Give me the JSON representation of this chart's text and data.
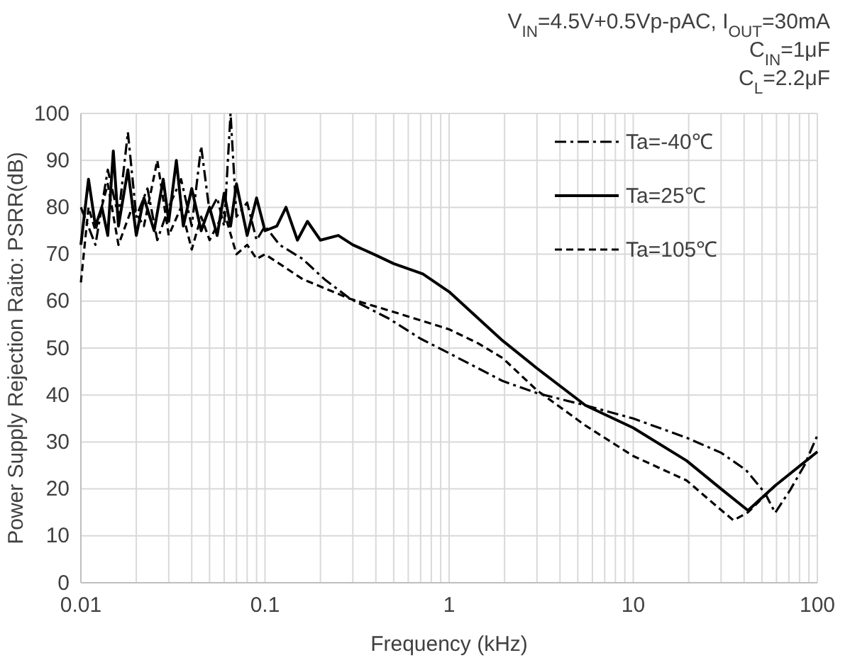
{
  "chart_data": {
    "type": "line",
    "title": "V$_{IN}$=4.5V+0.5Vp-pAC, I$_{OUT}$=30mA",
    "annotations": [
      "C$_{IN}$=1μF",
      "C$_{L}$=2.2μF"
    ],
    "xlabel": "Frequency (kHz)",
    "ylabel": "Power Supply Rejection Raito: PSRR(dB)",
    "log": "x",
    "grid": true,
    "legend": "top right",
    "marker": "none",
    "xlim": [
      0.01,
      100
    ],
    "xticks": [
      0.01,
      0.1,
      1,
      10,
      100
    ],
    "ylim": [
      0,
      100
    ],
    "yticks": [
      0,
      10,
      20,
      30,
      40,
      50,
      60,
      70,
      80,
      90,
      100
    ],
    "series": [
      {
        "name": "Ta=-40℃",
        "color": "#000000",
        "line_style": "dashdot",
        "x": [
          0.01,
          0.012,
          0.014,
          0.016,
          0.018,
          0.02,
          0.023,
          0.026,
          0.03,
          0.035,
          0.04,
          0.045,
          0.05,
          0.055,
          0.06,
          0.065,
          0.07,
          0.08,
          0.09,
          0.1,
          0.12,
          0.16,
          0.21,
          0.29,
          0.47,
          0.7,
          1,
          1.95,
          3,
          5.5,
          10,
          19.5,
          30,
          41,
          52,
          59,
          71,
          85,
          100
        ],
        "values": [
          80,
          72,
          88,
          78,
          96,
          78,
          84,
          73,
          80,
          86,
          76,
          93,
          79,
          82,
          76,
          100,
          78,
          81,
          73,
          76,
          72,
          69,
          64.7,
          60.5,
          56.3,
          52,
          48.9,
          43,
          40.4,
          37.8,
          35,
          30.9,
          27.7,
          24,
          19.1,
          14.9,
          19.7,
          25,
          31.4
        ]
      },
      {
        "name": "Ta=25℃",
        "color": "#000000",
        "line_style": "solid",
        "x": [
          0.01,
          0.011,
          0.012,
          0.013,
          0.014,
          0.015,
          0.016,
          0.018,
          0.02,
          0.022,
          0.025,
          0.028,
          0.03,
          0.033,
          0.036,
          0.04,
          0.045,
          0.05,
          0.055,
          0.06,
          0.065,
          0.07,
          0.08,
          0.09,
          0.1,
          0.116,
          0.13,
          0.15,
          0.17,
          0.2,
          0.25,
          0.3,
          0.39,
          0.5,
          0.72,
          1,
          1.95,
          3,
          5.5,
          10,
          19.5,
          30,
          42,
          59,
          100
        ],
        "values": [
          72,
          86,
          76,
          80,
          74,
          92,
          76,
          88,
          74,
          82,
          75,
          86,
          77,
          90,
          76,
          84,
          75,
          80,
          74,
          83,
          76,
          85,
          74,
          82,
          75,
          76,
          80,
          73,
          77,
          73,
          74,
          72,
          70,
          68,
          65.8,
          62,
          51.6,
          45.7,
          37.8,
          33,
          26,
          20,
          15.4,
          20.7,
          27.9
        ]
      },
      {
        "name": "Ta=105℃",
        "color": "#000000",
        "line_style": "dashed",
        "x": [
          0.01,
          0.011,
          0.012,
          0.014,
          0.016,
          0.019,
          0.022,
          0.026,
          0.03,
          0.035,
          0.04,
          0.045,
          0.05,
          0.06,
          0.07,
          0.08,
          0.09,
          0.1,
          0.16,
          0.29,
          0.53,
          1,
          1.44,
          1.95,
          3,
          5.5,
          10,
          19.5,
          28,
          35,
          42,
          59,
          100
        ],
        "values": [
          64,
          80,
          75,
          85,
          72,
          80,
          76,
          90,
          74,
          80,
          71,
          78,
          73,
          79,
          70,
          72,
          69,
          70,
          64.7,
          60.5,
          57.4,
          54,
          51,
          47.9,
          41,
          33.5,
          27,
          21.8,
          16.5,
          13.3,
          15,
          20.7,
          27.9
        ]
      }
    ]
  }
}
